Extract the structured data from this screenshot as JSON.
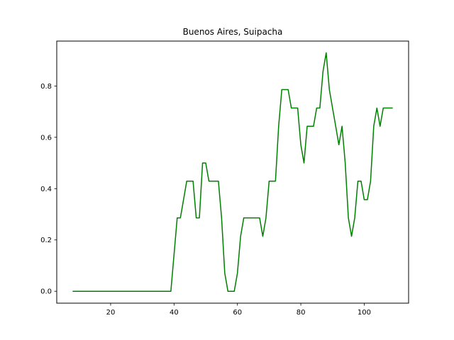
{
  "chart_data": {
    "type": "line",
    "title": "Buenos Aires, Suipacha",
    "xlabel": "",
    "ylabel": "",
    "xlim": [
      3.0,
      114.0
    ],
    "ylim": [
      -0.0464,
      0.975
    ],
    "xticks": [
      20,
      40,
      60,
      80,
      100
    ],
    "yticks": [
      0.0,
      0.2,
      0.4,
      0.6,
      0.8
    ],
    "xtick_labels": [
      "20",
      "40",
      "60",
      "80",
      "100"
    ],
    "ytick_labels": [
      "0.0",
      "0.2",
      "0.4",
      "0.6",
      "0.8"
    ],
    "grid": false,
    "series": [
      {
        "color": "#008000",
        "x": [
          8,
          39,
          40,
          41,
          42,
          43,
          44,
          45,
          46,
          47,
          48,
          49,
          50,
          51,
          52,
          53,
          54,
          55,
          56,
          57,
          58,
          59,
          60,
          61,
          62,
          63,
          64,
          65,
          66,
          67,
          68,
          69,
          70,
          71,
          72,
          73,
          74,
          75,
          76,
          77,
          78,
          79,
          80,
          81,
          82,
          83,
          84,
          85,
          86,
          87,
          88,
          89,
          90,
          91,
          92,
          93,
          94,
          95,
          96,
          97,
          98,
          99,
          100,
          101,
          102,
          103,
          104,
          105,
          106,
          107,
          108,
          109
        ],
        "y": [
          0.0,
          0.0,
          0.143,
          0.286,
          0.286,
          0.357,
          0.429,
          0.429,
          0.429,
          0.286,
          0.286,
          0.5,
          0.5,
          0.429,
          0.429,
          0.429,
          0.429,
          0.286,
          0.071,
          0.0,
          0.0,
          0.0,
          0.071,
          0.214,
          0.286,
          0.286,
          0.286,
          0.286,
          0.286,
          0.286,
          0.214,
          0.286,
          0.429,
          0.429,
          0.429,
          0.643,
          0.786,
          0.786,
          0.786,
          0.714,
          0.714,
          0.714,
          0.571,
          0.5,
          0.643,
          0.643,
          0.643,
          0.714,
          0.714,
          0.857,
          0.929,
          0.786,
          0.714,
          0.643,
          0.571,
          0.643,
          0.5,
          0.286,
          0.214,
          0.286,
          0.429,
          0.429,
          0.357,
          0.357,
          0.429,
          0.643,
          0.714,
          0.643,
          0.714,
          0.714,
          0.714,
          0.714
        ]
      }
    ]
  }
}
